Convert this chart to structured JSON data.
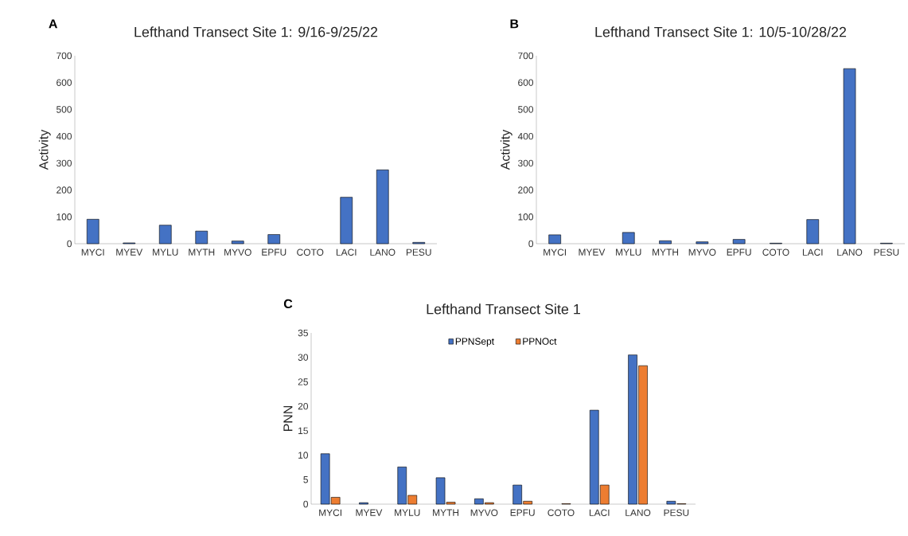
{
  "chart_data": [
    {
      "type": "bar",
      "title": "Lefthand Transect Site 1: 9/16-9/25/22",
      "ylabel": "Activity",
      "annotations": [
        "A"
      ],
      "categories": [
        "MYCI",
        "MYEV",
        "MYLU",
        "MYTH",
        "MYVO",
        "EPFU",
        "COTO",
        "LACI",
        "LANO",
        "PESU"
      ],
      "values": [
        91,
        3,
        69,
        47,
        10,
        34,
        0,
        173,
        275,
        5
      ],
      "color": "#4472c4",
      "ylim": [
        0,
        700
      ],
      "yticks": [
        0,
        100,
        200,
        300,
        400,
        500,
        600,
        700
      ]
    },
    {
      "type": "bar",
      "title": "Lefthand Transect Site 1: 10/5-10/28/22",
      "ylabel": "Activity",
      "annotations": [
        "B"
      ],
      "categories": [
        "MYCI",
        "MYEV",
        "MYLU",
        "MYTH",
        "MYVO",
        "EPFU",
        "COTO",
        "LACI",
        "LANO",
        "PESU"
      ],
      "values": [
        33,
        0,
        42,
        11,
        7,
        16,
        2,
        90,
        652,
        2
      ],
      "color": "#4472c4",
      "ylim": [
        0,
        700
      ],
      "yticks": [
        0,
        100,
        200,
        300,
        400,
        500,
        600,
        700
      ]
    },
    {
      "type": "bar",
      "title": "Lefthand Transect Site 1",
      "ylabel": "PNN",
      "annotations": [
        "C"
      ],
      "legend": "top",
      "categories": [
        "MYCI",
        "MYEV",
        "MYLU",
        "MYTH",
        "MYVO",
        "EPFU",
        "COTO",
        "LACI",
        "LANO",
        "PESU"
      ],
      "series": [
        {
          "name": "PPNSept",
          "color": "#4472c4",
          "values": [
            10.3,
            0.3,
            7.6,
            5.4,
            1.1,
            3.9,
            0,
            19.2,
            30.5,
            0.6
          ]
        },
        {
          "name": "PPNOct",
          "color": "#ed7d31",
          "values": [
            1.4,
            0,
            1.8,
            0.4,
            0.3,
            0.6,
            0.1,
            3.9,
            28.3,
            0.1
          ]
        }
      ],
      "ylim": [
        0,
        35
      ],
      "yticks": [
        0,
        5,
        10,
        15,
        20,
        25,
        30,
        35
      ]
    }
  ]
}
